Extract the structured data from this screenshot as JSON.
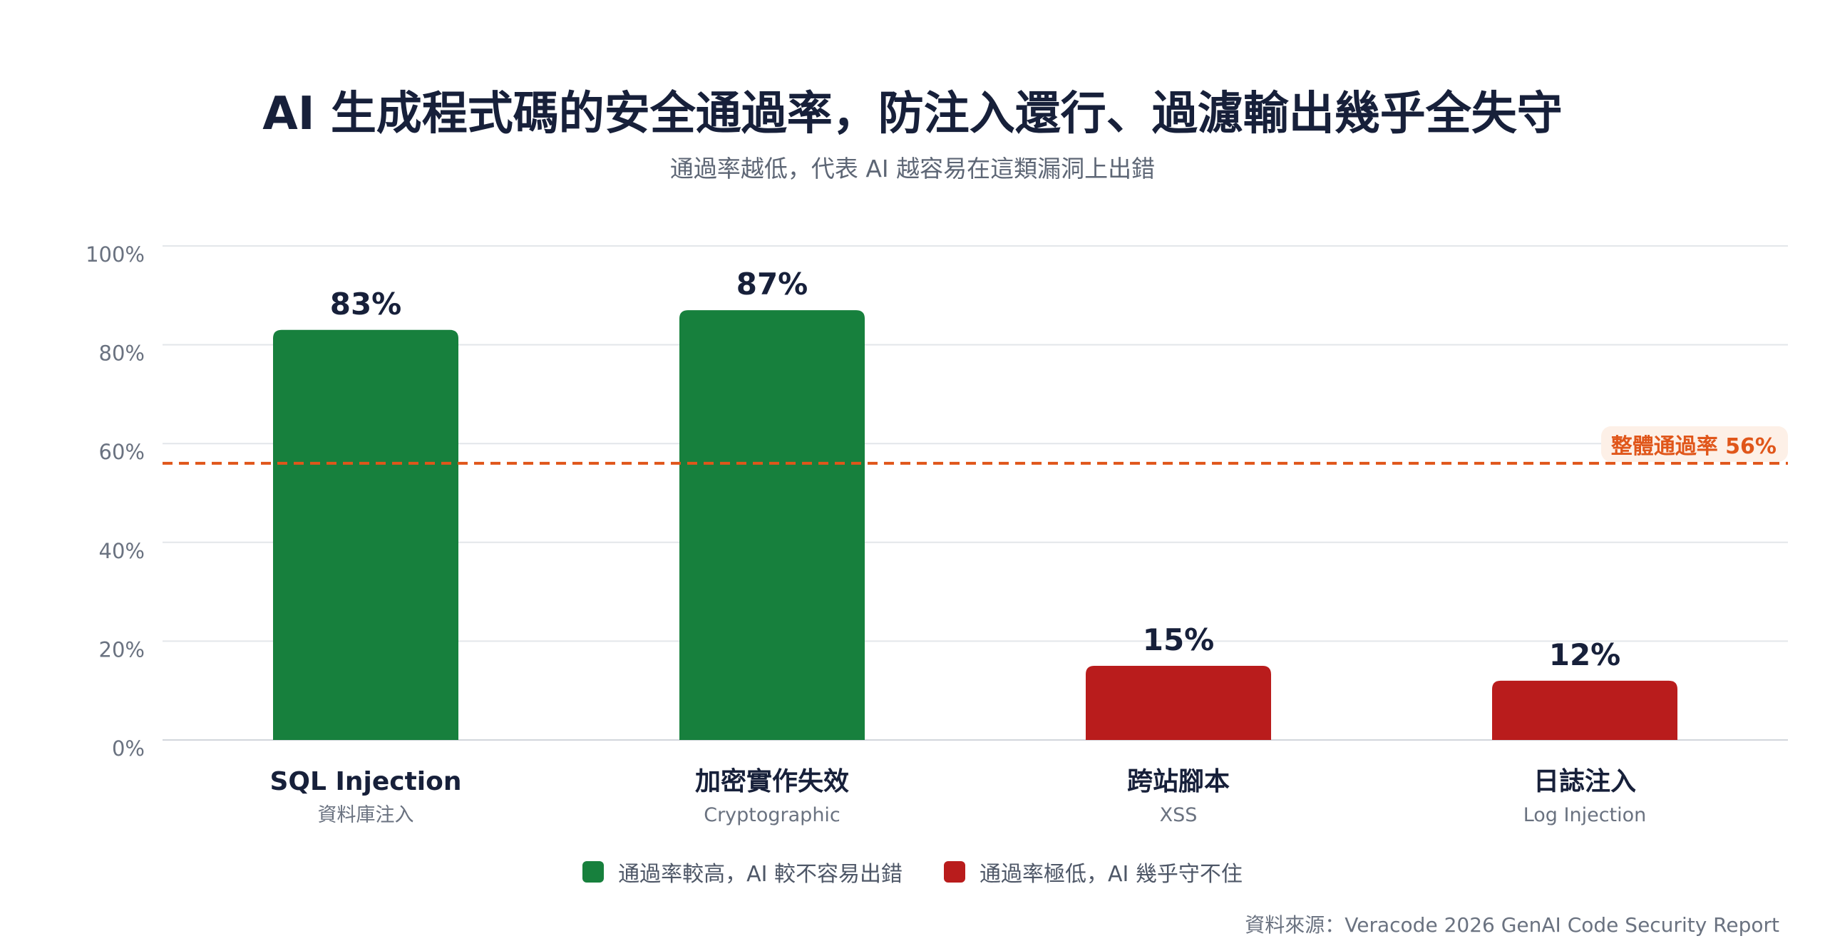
{
  "title": "AI 生成程式碼的安全通過率，防注入還行、過濾輸出幾乎全失守",
  "subtitle": "通過率越低，代表 AI 越容易在這類漏洞上出錯",
  "chart_data": {
    "type": "bar",
    "categories": [
      {
        "name": "SQL Injection",
        "sub": "資料庫注入",
        "value": 83,
        "label": "83%",
        "group": "high"
      },
      {
        "name": "加密實作失效",
        "sub": "Cryptographic",
        "value": 87,
        "label": "87%",
        "group": "high"
      },
      {
        "name": "跨站腳本",
        "sub": "XSS",
        "value": 15,
        "label": "15%",
        "group": "low"
      },
      {
        "name": "日誌注入",
        "sub": "Log Injection",
        "value": 12,
        "label": "12%",
        "group": "low"
      }
    ],
    "ylim": [
      0,
      100
    ],
    "yticks": [
      "0%",
      "20%",
      "40%",
      "60%",
      "80%",
      "100%"
    ],
    "ytick_values": [
      0,
      20,
      40,
      60,
      80,
      100
    ],
    "grid": true,
    "reference_line": {
      "value": 56,
      "label": "整體通過率 56%",
      "color": "#e0561a"
    },
    "colors": {
      "high": "#17803d",
      "low": "#b91c1c"
    },
    "legend": [
      {
        "label": "通過率較高，AI 較不容易出錯",
        "group": "high"
      },
      {
        "label": "通過率極低，AI 幾乎守不住",
        "group": "low"
      }
    ],
    "legend_placement": "bottom"
  },
  "source": "資料來源：Veracode 2026 GenAI Code Security Report"
}
